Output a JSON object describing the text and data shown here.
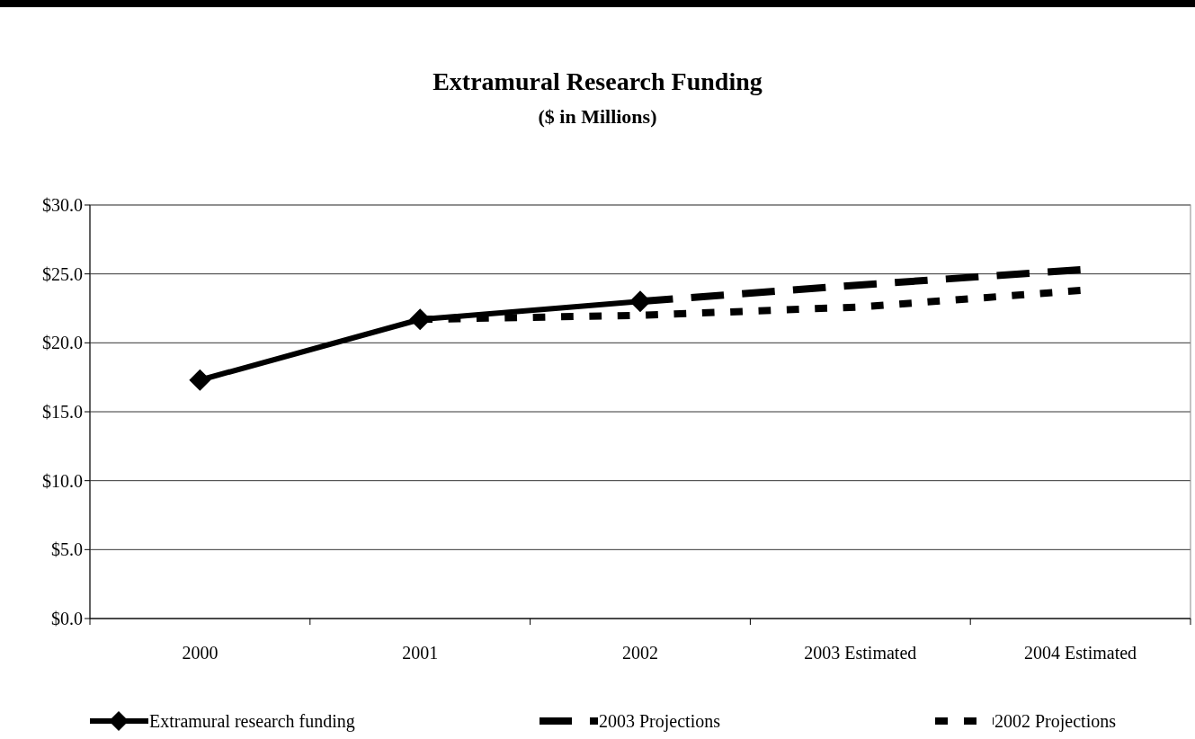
{
  "chart_data": {
    "type": "line",
    "title": "Extramural Research Funding",
    "subtitle": "($ in Millions)",
    "categories": [
      "2000",
      "2001",
      "2002",
      "2003 Estimated",
      "2004 Estimated"
    ],
    "series": [
      {
        "name": "Extramural research funding",
        "color": "#000000",
        "values": [
          17.3,
          21.7,
          23.0,
          null,
          null
        ],
        "marker": "diamond",
        "line_style": "solid"
      },
      {
        "name": "2003 Projections",
        "color": "#000000",
        "values": [
          null,
          null,
          23.0,
          24.2,
          25.3
        ],
        "marker": "none",
        "line_style": "dashed"
      },
      {
        "name": "2002 Projections",
        "color": "#000000",
        "values": [
          null,
          21.7,
          22.0,
          22.6,
          23.8
        ],
        "marker": "none",
        "line_style": "dotted"
      }
    ],
    "ylim": [
      0,
      30
    ],
    "yticks": [
      {
        "value": 0,
        "label": "$0.0"
      },
      {
        "value": 5,
        "label": "$5.0"
      },
      {
        "value": 10,
        "label": "$10.0"
      },
      {
        "value": 15,
        "label": "$15.0"
      },
      {
        "value": 20,
        "label": "$20.0"
      },
      {
        "value": 25,
        "label": "$25.0"
      },
      {
        "value": 30,
        "label": "$30.0"
      }
    ],
    "grid": "y",
    "legend": "bottom"
  }
}
